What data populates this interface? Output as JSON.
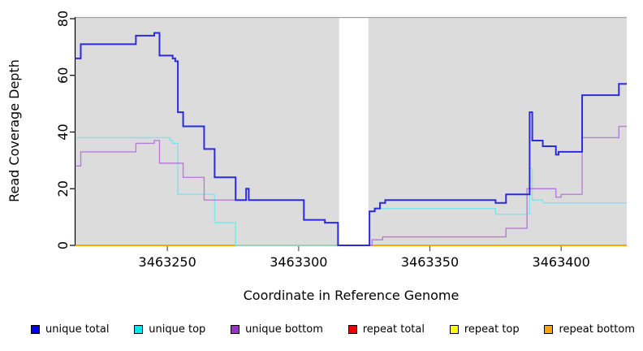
{
  "chart_data": {
    "type": "line",
    "subtype": "step-coverage",
    "title": "",
    "xlabel": "Coordinate in Reference Genome",
    "ylabel": "Read Coverage Depth",
    "xlim": [
      3463215,
      3463425
    ],
    "ylim": [
      0,
      80
    ],
    "xticks": [
      3463250,
      3463300,
      3463350,
      3463400
    ],
    "yticks": [
      0,
      20,
      40,
      60,
      80
    ],
    "grid": false,
    "legend_position": "bottom",
    "plot_background": "#DCDCDC",
    "plot_top_border_color": "#A3A3A3",
    "axis_color": "#000000",
    "gap_region": {
      "from": 3463315.4,
      "to": 3463326.6,
      "color": "#FFFFFF"
    },
    "series": [
      {
        "name": "repeat total",
        "color": "#DD0000",
        "width": 1.4,
        "segments": [
          [
            [
              3463215,
              0
            ],
            [
              3463315,
              0
            ]
          ],
          [
            [
              3463327,
              0
            ],
            [
              3463425,
              0
            ]
          ]
        ]
      },
      {
        "name": "repeat top",
        "color": "#FFFF00",
        "width": 1.4,
        "segments": [
          [
            [
              3463215,
              0
            ],
            [
              3463315,
              0
            ]
          ],
          [
            [
              3463327,
              0
            ],
            [
              3463425,
              0
            ]
          ]
        ]
      },
      {
        "name": "repeat bottom",
        "color": "#FFA500",
        "width": 2,
        "segments": [
          [
            [
              3463215,
              0
            ],
            [
              3463315,
              0
            ]
          ],
          [
            [
              3463327,
              0
            ],
            [
              3463425,
              0
            ]
          ]
        ]
      },
      {
        "name": "unique top",
        "color": "#7CE4EE",
        "width": 1.4,
        "segments": [
          [
            [
              3463215,
              38
            ],
            [
              3463251,
              37
            ],
            [
              3463252,
              36
            ],
            [
              3463254,
              18
            ],
            [
              3463268,
              8
            ],
            [
              3463276,
              0
            ],
            [
              3463327,
              12
            ],
            [
              3463329,
              13
            ],
            [
              3463375,
              11
            ],
            [
              3463388,
              27
            ],
            [
              3463389,
              16
            ],
            [
              3463393,
              15
            ],
            [
              3463425,
              15
            ]
          ]
        ]
      },
      {
        "name": "unique bottom",
        "color": "#B77CD9",
        "width": 1.4,
        "segments": [
          [
            [
              3463215,
              28
            ],
            [
              3463217,
              33
            ],
            [
              3463238,
              36
            ],
            [
              3463245,
              37
            ],
            [
              3463247,
              29
            ],
            [
              3463256,
              24
            ],
            [
              3463264,
              16
            ],
            [
              3463280,
              20
            ],
            [
              3463281,
              16
            ],
            [
              3463302,
              9
            ],
            [
              3463310,
              8
            ],
            [
              3463315,
              0
            ],
            [
              3463328,
              2
            ],
            [
              3463332,
              3
            ],
            [
              3463379,
              6
            ],
            [
              3463387,
              20
            ],
            [
              3463398,
              17
            ],
            [
              3463400,
              18
            ],
            [
              3463408,
              38
            ],
            [
              3463422,
              42
            ],
            [
              3463425,
              42
            ]
          ]
        ]
      },
      {
        "name": "unique total",
        "color": "#2B2BDE",
        "width": 2,
        "segments": [
          [
            [
              3463215,
              66
            ],
            [
              3463217,
              71
            ],
            [
              3463238,
              74
            ],
            [
              3463245,
              75
            ],
            [
              3463247,
              67
            ],
            [
              3463252,
              66
            ],
            [
              3463253,
              65
            ],
            [
              3463254,
              47
            ],
            [
              3463256,
              42
            ],
            [
              3463264,
              34
            ],
            [
              3463268,
              24
            ],
            [
              3463276,
              16
            ],
            [
              3463280,
              20
            ],
            [
              3463281,
              16
            ],
            [
              3463302,
              9
            ],
            [
              3463310,
              8
            ],
            [
              3463315,
              0
            ],
            [
              3463327,
              12
            ],
            [
              3463329,
              13
            ],
            [
              3463331,
              15
            ],
            [
              3463333,
              16
            ],
            [
              3463375,
              15
            ],
            [
              3463379,
              18
            ],
            [
              3463388,
              47
            ],
            [
              3463389,
              37
            ],
            [
              3463393,
              35
            ],
            [
              3463398,
              32
            ],
            [
              3463399,
              33
            ],
            [
              3463408,
              53
            ],
            [
              3463422,
              57
            ],
            [
              3463425,
              57
            ]
          ]
        ]
      }
    ]
  },
  "legend": {
    "items": [
      {
        "label": "unique total",
        "swatch_color": "#0000EE"
      },
      {
        "label": "unique top",
        "swatch_color": "#00E5EE"
      },
      {
        "label": "unique bottom",
        "swatch_color": "#9932CC"
      },
      {
        "label": "repeat total",
        "swatch_color": "#EE0000"
      },
      {
        "label": "repeat top",
        "swatch_color": "#FFFF00"
      },
      {
        "label": "repeat bottom",
        "swatch_color": "#FFA500"
      }
    ]
  }
}
